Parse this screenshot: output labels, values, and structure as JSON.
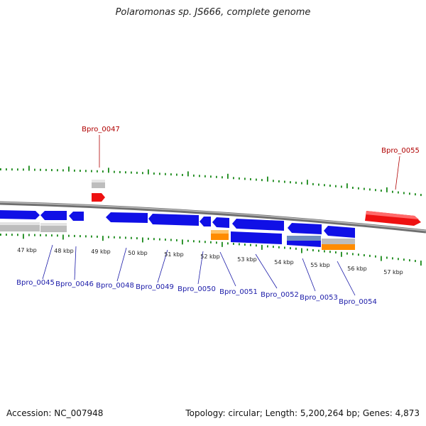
{
  "title": "Polaromonas sp. JS666, complete genome",
  "footer": {
    "accession": "Accession: NC_007948",
    "summary": "Topology: circular; Length: 5,200,264 bp; Genes: 4,873"
  },
  "colors": {
    "forward_gene": "#1010e6",
    "reverse_gene": "#1010e6",
    "highlight_gene": "#ee1111",
    "rna_gene": "#bdbdbd",
    "orange_gene": "#ff8c00",
    "tick": "#1a8a1a",
    "backbone": "#7a7a7a",
    "gene_label": "#1a1aa8",
    "highlight_label": "#b00000"
  },
  "kbp_ticks": [
    "47 kbp",
    "48 kbp",
    "49 kbp",
    "50 kbp",
    "51 kbp",
    "52 kbp",
    "53 kbp",
    "54 kbp",
    "55 kbp",
    "56 kbp",
    "57 kbp"
  ],
  "gene_labels": [
    {
      "id": "Bpro_0045",
      "color": "blue"
    },
    {
      "id": "Bpro_0046",
      "color": "blue"
    },
    {
      "id": "Bpro_0047",
      "color": "red"
    },
    {
      "id": "Bpro_0048",
      "color": "blue"
    },
    {
      "id": "Bpro_0049",
      "color": "blue"
    },
    {
      "id": "Bpro_0050",
      "color": "blue"
    },
    {
      "id": "Bpro_0051",
      "color": "blue"
    },
    {
      "id": "Bpro_0052",
      "color": "blue"
    },
    {
      "id": "Bpro_0053",
      "color": "blue"
    },
    {
      "id": "Bpro_0054",
      "color": "blue"
    },
    {
      "id": "Bpro_0055",
      "color": "red"
    }
  ]
}
